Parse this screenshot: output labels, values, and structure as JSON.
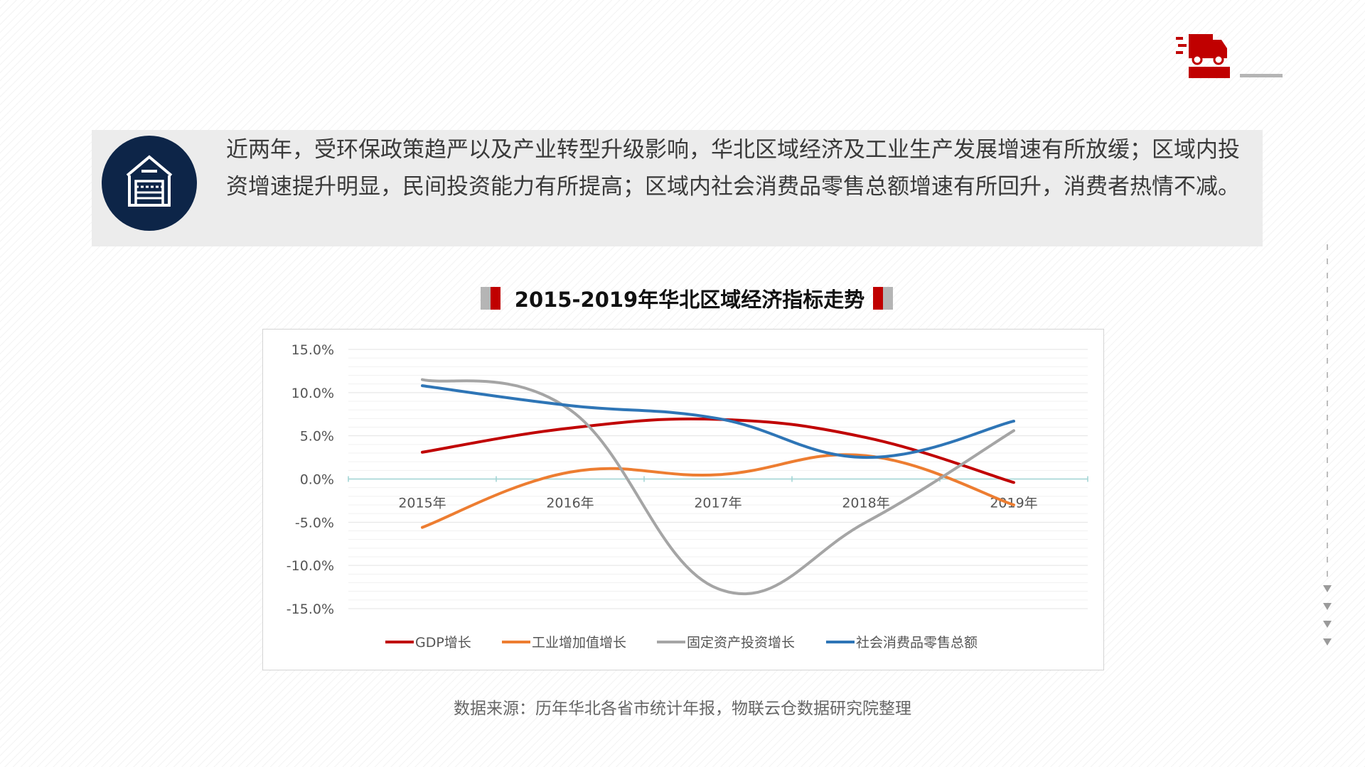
{
  "intro": {
    "text": "近两年，受环保政策趋严以及产业转型升级影响，华北区域经济及工业生产发展增速有所放缓；区域内投资增速提升明显，民间投资能力有所提高；区域内社会消费品零售总额增速有所回升，消费者热情不减。",
    "icon": "warehouse-icon"
  },
  "logo": {
    "icon": "delivery-truck-icon",
    "color": "#c00000"
  },
  "source": "数据来源：历年华北各省市统计年报，物联云仓数据研究院整理",
  "colors": {
    "accent": "#c00000",
    "icon_bg": "#0d2548"
  },
  "chart_data": {
    "type": "line",
    "title": "2015-2019年华北区域经济指标走势",
    "categories": [
      "2015年",
      "2016年",
      "2017年",
      "2018年",
      "2019年"
    ],
    "ylim": [
      -15,
      15
    ],
    "yticks": [
      "15.0%",
      "10.0%",
      "5.0%",
      "0.0%",
      "-5.0%",
      "-10.0%",
      "-15.0%"
    ],
    "ytick_values": [
      15,
      10,
      5,
      0,
      -5,
      -10,
      -15
    ],
    "grid": true,
    "legend_position": "bottom",
    "series": [
      {
        "name": "GDP增长",
        "color": "#c00000",
        "values": [
          3.1,
          5.9,
          6.9,
          4.8,
          -0.4
        ]
      },
      {
        "name": "工业增加值增长",
        "color": "#ed7d31",
        "values": [
          -5.6,
          0.8,
          0.5,
          2.7,
          -3.0
        ]
      },
      {
        "name": "固定资产投资增长",
        "color": "#a5a5a5",
        "values": [
          11.5,
          8.0,
          -12.7,
          -5.0,
          5.6
        ]
      },
      {
        "name": "社会消费品零售总额",
        "color": "#2e75b6",
        "values": [
          10.8,
          8.5,
          7.0,
          2.5,
          6.7
        ]
      }
    ]
  }
}
